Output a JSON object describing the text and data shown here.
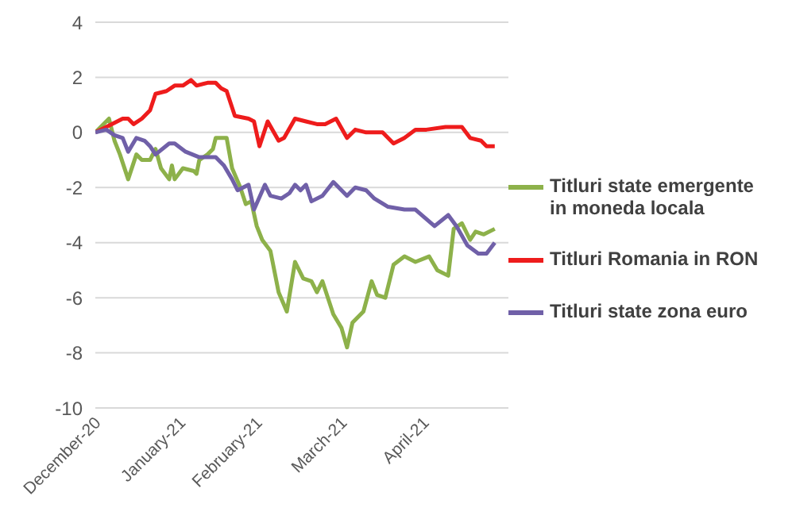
{
  "chart_data": {
    "type": "line",
    "ylim": [
      -10,
      4
    ],
    "yticks": [
      -10,
      -8,
      -6,
      -4,
      -2,
      0,
      2,
      4
    ],
    "xlim": [
      "2020-12-31",
      "2021-05-31"
    ],
    "xticks": [
      {
        "value": "2020-12-31",
        "label": "December-20"
      },
      {
        "value": "2021-01-31",
        "label": "January-21"
      },
      {
        "value": "2021-02-28",
        "label": "February-21"
      },
      {
        "value": "2021-03-31",
        "label": "March-21"
      },
      {
        "value": "2021-04-30",
        "label": "April-21"
      }
    ],
    "grid": "y",
    "legend": "right",
    "series": [
      {
        "name": "Titluri state emergente in moneda locala",
        "color": "#8db14a",
        "x": [
          "2020-12-31",
          "2021-01-05",
          "2021-01-07",
          "2021-01-09",
          "2021-01-12",
          "2021-01-15",
          "2021-01-17",
          "2021-01-20",
          "2021-01-22",
          "2021-01-24",
          "2021-01-27",
          "2021-01-28",
          "2021-01-29",
          "2021-02-01",
          "2021-02-05",
          "2021-02-06",
          "2021-02-07",
          "2021-02-10",
          "2021-02-12",
          "2021-02-13",
          "2021-02-17",
          "2021-02-19",
          "2021-02-22",
          "2021-02-24",
          "2021-02-26",
          "2021-02-28",
          "2021-03-02",
          "2021-03-05",
          "2021-03-08",
          "2021-03-11",
          "2021-03-14",
          "2021-03-17",
          "2021-03-20",
          "2021-03-22",
          "2021-03-24",
          "2021-03-28",
          "2021-03-31",
          "2021-04-02",
          "2021-04-04",
          "2021-04-08",
          "2021-04-11",
          "2021-04-13",
          "2021-04-16",
          "2021-04-19",
          "2021-04-23",
          "2021-04-27",
          "2021-05-02",
          "2021-05-05",
          "2021-05-09",
          "2021-05-11",
          "2021-05-14",
          "2021-05-17",
          "2021-05-19",
          "2021-05-22",
          "2021-05-26"
        ],
        "values": [
          0,
          0.5,
          -0.3,
          -0.8,
          -1.7,
          -0.8,
          -1.0,
          -1.0,
          -0.6,
          -1.3,
          -1.7,
          -1.2,
          -1.7,
          -1.3,
          -1.4,
          -1.5,
          -1.0,
          -0.8,
          -0.6,
          -0.2,
          -0.2,
          -1.3,
          -2.0,
          -2.6,
          -2.5,
          -3.4,
          -3.9,
          -4.3,
          -5.8,
          -6.5,
          -4.7,
          -5.3,
          -5.4,
          -5.8,
          -5.4,
          -6.6,
          -7.1,
          -7.8,
          -6.9,
          -6.5,
          -5.4,
          -5.9,
          -6.0,
          -4.8,
          -4.5,
          -4.7,
          -4.5,
          -5.0,
          -5.2,
          -3.5,
          -3.3,
          -3.9,
          -3.6,
          -3.7,
          -3.5
        ]
      },
      {
        "name": "Titluri Romania in RON",
        "color": "#ee1c1c",
        "x": [
          "2020-12-31",
          "2021-01-06",
          "2021-01-10",
          "2021-01-12",
          "2021-01-14",
          "2021-01-17",
          "2021-01-20",
          "2021-01-22",
          "2021-01-26",
          "2021-01-29",
          "2021-02-01",
          "2021-02-04",
          "2021-02-06",
          "2021-02-10",
          "2021-02-13",
          "2021-02-15",
          "2021-02-17",
          "2021-02-20",
          "2021-02-25",
          "2021-02-27",
          "2021-03-01",
          "2021-03-04",
          "2021-03-08",
          "2021-03-10",
          "2021-03-14",
          "2021-03-18",
          "2021-03-22",
          "2021-03-25",
          "2021-03-29",
          "2021-04-02",
          "2021-04-05",
          "2021-04-09",
          "2021-04-15",
          "2021-04-19",
          "2021-04-23",
          "2021-04-27",
          "2021-05-01",
          "2021-05-08",
          "2021-05-14",
          "2021-05-17",
          "2021-05-21",
          "2021-05-23",
          "2021-05-26"
        ],
        "values": [
          0,
          0.3,
          0.5,
          0.5,
          0.3,
          0.5,
          0.8,
          1.4,
          1.5,
          1.7,
          1.7,
          1.9,
          1.7,
          1.8,
          1.8,
          1.6,
          1.5,
          0.6,
          0.5,
          0.4,
          -0.5,
          0.4,
          -0.3,
          -0.2,
          0.5,
          0.4,
          0.3,
          0.3,
          0.5,
          -0.2,
          0.1,
          0,
          0,
          -0.4,
          -0.2,
          0.1,
          0.1,
          0.2,
          0.2,
          -0.2,
          -0.3,
          -0.5,
          -0.5
        ]
      },
      {
        "name": "Titluri state zona euro",
        "color": "#7060a8",
        "x": [
          "2020-12-31",
          "2021-01-04",
          "2021-01-07",
          "2021-01-10",
          "2021-01-12",
          "2021-01-15",
          "2021-01-18",
          "2021-01-20",
          "2021-01-22",
          "2021-01-27",
          "2021-01-29",
          "2021-02-02",
          "2021-02-07",
          "2021-02-13",
          "2021-02-16",
          "2021-02-19",
          "2021-02-21",
          "2021-02-25",
          "2021-02-27",
          "2021-03-03",
          "2021-03-05",
          "2021-03-09",
          "2021-03-12",
          "2021-03-14",
          "2021-03-16",
          "2021-03-18",
          "2021-03-20",
          "2021-03-24",
          "2021-03-28",
          "2021-04-02",
          "2021-04-05",
          "2021-04-09",
          "2021-04-12",
          "2021-04-17",
          "2021-04-23",
          "2021-04-27",
          "2021-05-04",
          "2021-05-09",
          "2021-05-12",
          "2021-05-16",
          "2021-05-20",
          "2021-05-23",
          "2021-05-26"
        ],
        "values": [
          0,
          0.1,
          -0.1,
          -0.2,
          -0.7,
          -0.2,
          -0.3,
          -0.5,
          -0.8,
          -0.4,
          -0.4,
          -0.7,
          -0.9,
          -0.9,
          -1.2,
          -1.7,
          -2.1,
          -1.9,
          -2.8,
          -1.9,
          -2.3,
          -2.4,
          -2.2,
          -1.9,
          -2.1,
          -1.9,
          -2.5,
          -2.3,
          -1.8,
          -2.3,
          -2.0,
          -2.1,
          -2.4,
          -2.7,
          -2.8,
          -2.8,
          -3.4,
          -3.0,
          -3.4,
          -4.1,
          -4.4,
          -4.4,
          -4.0
        ]
      }
    ]
  }
}
